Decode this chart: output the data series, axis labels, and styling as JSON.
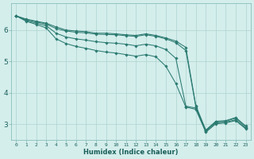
{
  "xlabel": "Humidex (Indice chaleur)",
  "background_color": "#d4eeec",
  "grid_color": "#aed4d0",
  "line_color": "#2a7a70",
  "xlim": [
    -0.5,
    23.5
  ],
  "ylim": [
    2.5,
    6.85
  ],
  "yticks": [
    3,
    4,
    5,
    6
  ],
  "xtick_labels": [
    "0",
    "1",
    "2",
    "3",
    "4",
    "5",
    "6",
    "7",
    "8",
    "9",
    "1011",
    "1213",
    "1415",
    "1617",
    "1819",
    "2021",
    "2223"
  ],
  "lines": [
    [
      6.45,
      6.35,
      6.28,
      6.22,
      6.1,
      6.0,
      5.97,
      5.95,
      5.9,
      5.9,
      5.88,
      5.85,
      5.83,
      5.88,
      5.83,
      5.75,
      5.65,
      5.45,
      3.6,
      2.82,
      3.1,
      3.12,
      3.22,
      2.95
    ],
    [
      6.45,
      6.33,
      6.26,
      6.19,
      6.05,
      5.97,
      5.93,
      5.91,
      5.87,
      5.86,
      5.85,
      5.82,
      5.8,
      5.85,
      5.8,
      5.72,
      5.6,
      5.35,
      3.57,
      2.8,
      3.08,
      3.1,
      3.2,
      2.92
    ],
    [
      6.45,
      6.3,
      6.22,
      6.14,
      5.9,
      5.78,
      5.72,
      5.68,
      5.63,
      5.6,
      5.58,
      5.55,
      5.5,
      5.55,
      5.5,
      5.38,
      5.1,
      3.58,
      3.52,
      2.78,
      3.05,
      3.07,
      3.15,
      2.88
    ],
    [
      6.45,
      6.28,
      6.18,
      6.07,
      5.72,
      5.57,
      5.48,
      5.42,
      5.35,
      5.3,
      5.27,
      5.22,
      5.17,
      5.22,
      5.15,
      4.85,
      4.3,
      3.55,
      3.48,
      2.75,
      3.02,
      3.05,
      3.12,
      2.86
    ]
  ]
}
